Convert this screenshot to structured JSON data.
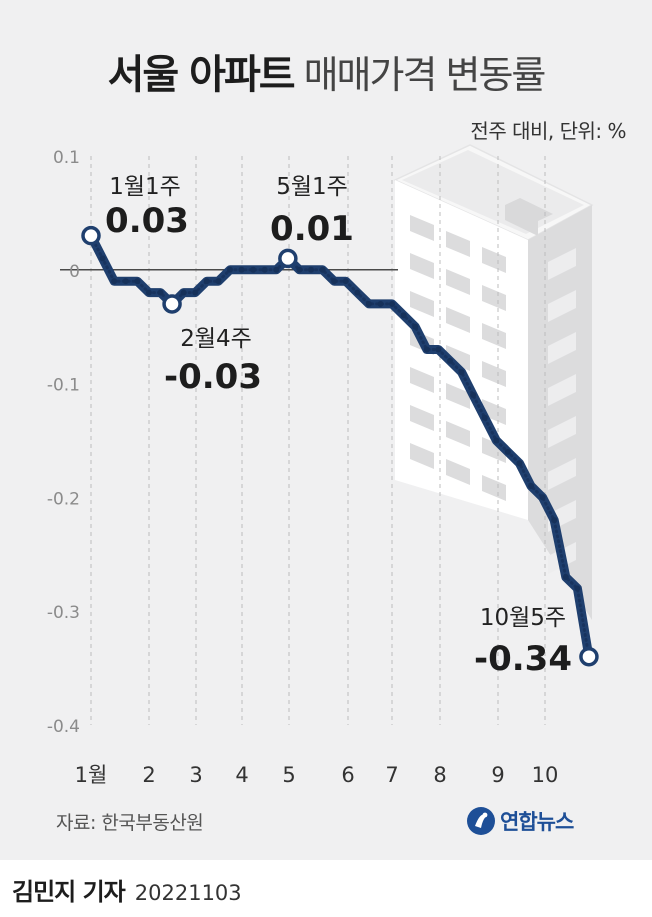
{
  "header": {
    "title_bold": "서울 아파트",
    "title_light": "매매가격 변동률",
    "subtitle": "전주 대비, 단위: %"
  },
  "chart_data": {
    "type": "line",
    "title": "서울 아파트 매매가격 변동률",
    "subtitle": "전주 대비, 단위: %",
    "ylim": [
      -0.4,
      0.1
    ],
    "y_ticks": [
      "0.1",
      "0",
      "-0.1",
      "-0.2",
      "-0.3",
      "-0.4"
    ],
    "y_tick_values": [
      0.1,
      0,
      -0.1,
      -0.2,
      -0.3,
      -0.4
    ],
    "x_month_labels": [
      "1월",
      "2",
      "3",
      "4",
      "5",
      "6",
      "7",
      "8",
      "9",
      "10"
    ],
    "grid": "vertical dashed lines at months",
    "series": [
      {
        "color": "#1f3f6e",
        "x": [
          "1월1주",
          "1월2주",
          "1월3주",
          "1월4주",
          "2월1주",
          "2월2주",
          "2월3주",
          "2월4주",
          "3월1주",
          "3월2주",
          "3월3주",
          "3월4주",
          "3월5주",
          "4월1주",
          "4월2주",
          "4월3주",
          "4월4주",
          "5월1주",
          "5월2주",
          "5월3주",
          "5월4주",
          "5월5주",
          "6월1주",
          "6월2주",
          "6월3주",
          "6월4주",
          "7월1주",
          "7월2주",
          "7월3주",
          "7월4주",
          "8월1주",
          "8월2주",
          "8월3주",
          "8월4주",
          "8월5주",
          "9월1주",
          "9월2주",
          "9월3주",
          "9월4주",
          "10월1주",
          "10월2주",
          "10월3주",
          "10월4주",
          "10월5주"
        ],
        "values": [
          0.03,
          0.01,
          -0.01,
          -0.01,
          -0.01,
          -0.02,
          -0.02,
          -0.03,
          -0.02,
          -0.02,
          -0.01,
          -0.01,
          0.0,
          0.0,
          0.0,
          0.0,
          0.0,
          0.01,
          0.0,
          0.0,
          0.0,
          -0.01,
          -0.01,
          -0.02,
          -0.03,
          -0.03,
          -0.03,
          -0.04,
          -0.05,
          -0.07,
          -0.07,
          -0.08,
          -0.09,
          -0.11,
          -0.13,
          -0.15,
          -0.16,
          -0.17,
          -0.19,
          -0.2,
          -0.22,
          -0.27,
          -0.28,
          -0.34
        ]
      }
    ],
    "annotations": [
      {
        "week": "1월1주",
        "value_label": "0.03"
      },
      {
        "week": "2월4주",
        "value_label": "-0.03"
      },
      {
        "week": "5월1주",
        "value_label": "0.01"
      },
      {
        "week": "10월5주",
        "value_label": "-0.34"
      }
    ]
  },
  "footer": {
    "source": "자료: 한국부동산원",
    "agency": "연합뉴스",
    "reporter": "김민지 기자",
    "date": "20221103"
  },
  "colors": {
    "background": "#f0f0f1",
    "line": "#1f3f6e",
    "line_dots": "#16315a",
    "marker_fill": "#ffffff",
    "building": "#ffffff",
    "building_side": "#dcdcdd",
    "agency_blue": "#1e4f97"
  }
}
